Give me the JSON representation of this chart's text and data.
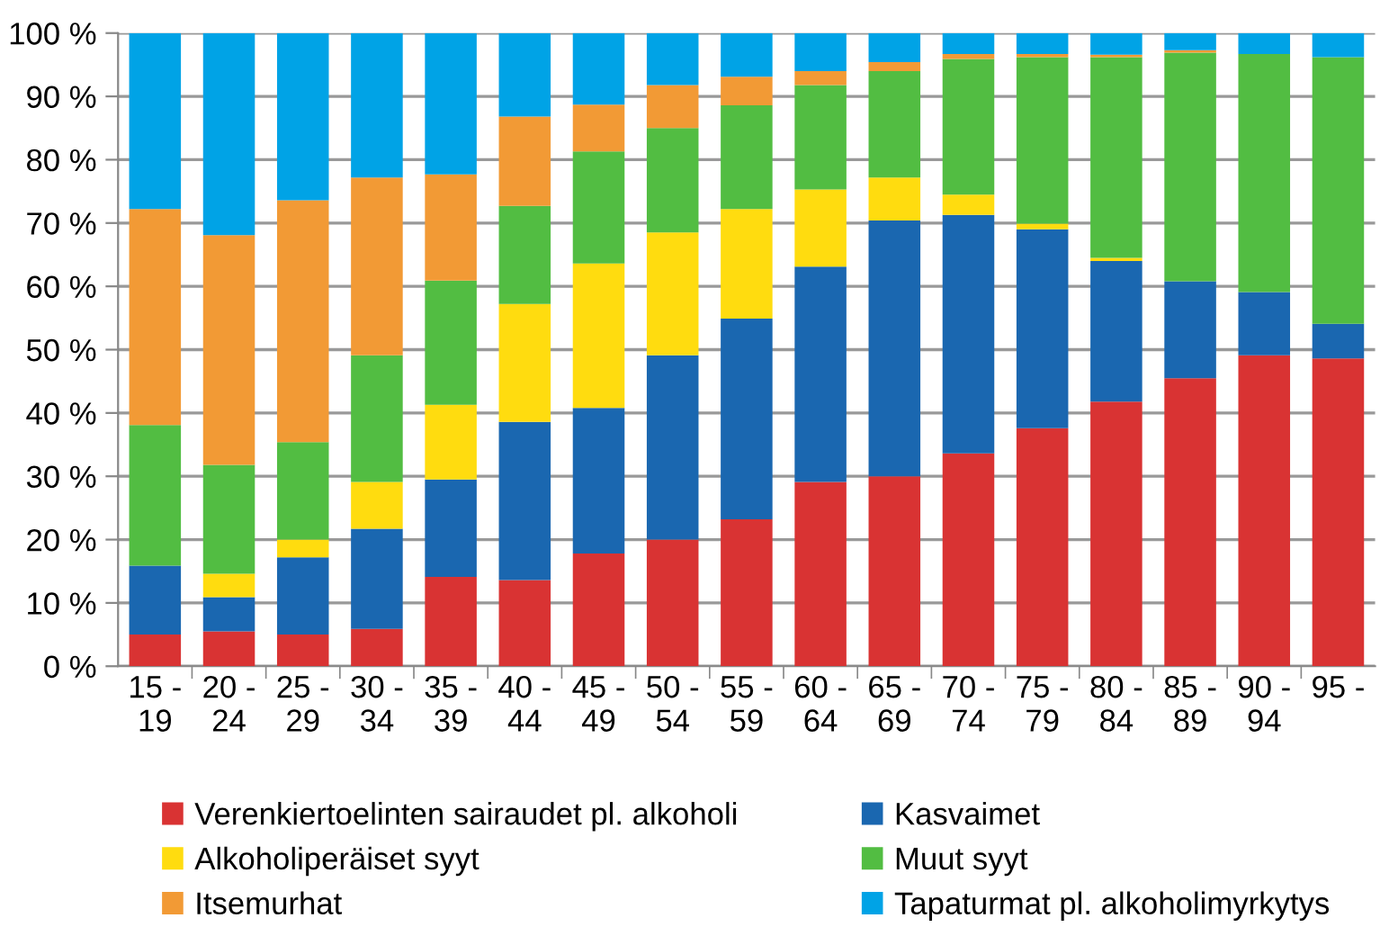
{
  "chart_data": {
    "type": "bar",
    "stacked": true,
    "categories": [
      "15 -\n19",
      "20 -\n24",
      "25 -\n29",
      "30 -\n34",
      "35 -\n39",
      "40 -\n44",
      "45 -\n49",
      "50 -\n54",
      "55 -\n59",
      "60 -\n64",
      "65 -\n69",
      "70 -\n74",
      "75 -\n79",
      "80 -\n84",
      "85 -\n89",
      "90 -\n94",
      "95 -"
    ],
    "series": [
      {
        "name": "Verenkiertoelinten sairaudet pl. alkoholi",
        "color": "#d93333",
        "values": [
          5.0,
          5.5,
          5.0,
          5.9,
          14.1,
          13.6,
          17.8,
          20.0,
          23.2,
          29.1,
          30.0,
          33.6,
          37.6,
          41.8,
          45.5,
          49.1,
          48.6
        ]
      },
      {
        "name": "Kasvaimet",
        "color": "#1a67b0",
        "values": [
          10.9,
          5.4,
          12.2,
          15.8,
          15.4,
          25.0,
          23.0,
          29.1,
          31.7,
          34.0,
          40.4,
          37.7,
          31.4,
          22.2,
          15.3,
          10.0,
          5.5
        ]
      },
      {
        "name": "Alkoholiperäiset syyt",
        "color": "#ffdc0f",
        "values": [
          0,
          3.7,
          2.8,
          7.4,
          11.8,
          18.6,
          22.8,
          19.4,
          17.3,
          12.2,
          6.8,
          3.2,
          0.9,
          0.5,
          0,
          0,
          0
        ]
      },
      {
        "name": "Muut syyt",
        "color": "#52bd42",
        "values": [
          22.2,
          17.2,
          15.4,
          20.0,
          19.6,
          15.5,
          17.7,
          16.5,
          16.4,
          16.5,
          16.8,
          21.4,
          26.3,
          31.7,
          36.1,
          37.6,
          42.1
        ]
      },
      {
        "name": "Itsemurhat",
        "color": "#f29a35",
        "values": [
          34.1,
          36.3,
          38.2,
          28.1,
          16.8,
          14.1,
          7.4,
          6.8,
          4.5,
          2.2,
          1.4,
          0.8,
          0.5,
          0.4,
          0.4,
          0,
          0
        ]
      },
      {
        "name": "Tapaturmat pl. alkoholimyrkytys",
        "color": "#00a3e6",
        "values": [
          27.8,
          31.9,
          26.4,
          22.8,
          22.3,
          13.2,
          11.3,
          8.2,
          6.9,
          6.0,
          4.6,
          3.3,
          3.3,
          3.4,
          2.7,
          3.3,
          3.8
        ]
      }
    ],
    "ylim": [
      0,
      100
    ],
    "yticks": [
      {
        "value": 0,
        "label": "0 %"
      },
      {
        "value": 10,
        "label": "10 %"
      },
      {
        "value": 20,
        "label": "20 %"
      },
      {
        "value": 30,
        "label": "30 %"
      },
      {
        "value": 40,
        "label": "40 %"
      },
      {
        "value": 50,
        "label": "50 %"
      },
      {
        "value": 60,
        "label": "60 %"
      },
      {
        "value": 70,
        "label": "70 %"
      },
      {
        "value": 80,
        "label": "80 %"
      },
      {
        "value": 90,
        "label": "90 %"
      },
      {
        "value": 100,
        "label": "100 %"
      }
    ],
    "grid": "y",
    "legend": "bottom"
  }
}
